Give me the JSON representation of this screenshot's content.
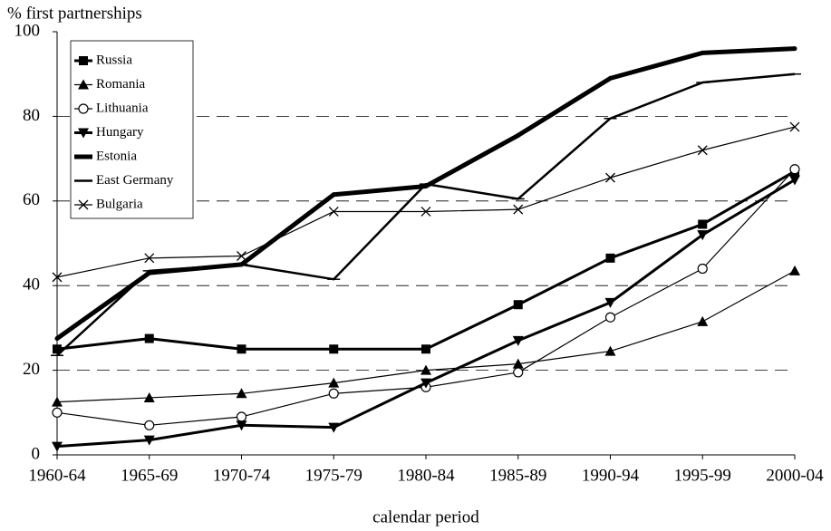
{
  "chart_data": {
    "type": "line",
    "y_axis_title": "% first partnerships",
    "x_axis_title": "calendar period",
    "categories": [
      "1960-64",
      "1965-69",
      "1970-74",
      "1975-79",
      "1980-84",
      "1985-89",
      "1990-94",
      "1995-99",
      "2000-04"
    ],
    "ylim": [
      0,
      100
    ],
    "yticks": [
      0,
      20,
      40,
      60,
      80,
      100
    ],
    "grid": true,
    "legend": "top-left",
    "series": [
      {
        "name": "Russia",
        "color": "#000000",
        "marker": "square",
        "width": 3,
        "values": [
          25,
          27.5,
          25,
          25,
          25,
          35.5,
          46.5,
          54.5,
          67
        ]
      },
      {
        "name": "Romania",
        "color": "#000000",
        "marker": "triangle",
        "width": 1.2,
        "values": [
          12.5,
          13.5,
          14.5,
          17,
          20,
          21.5,
          24.5,
          31.5,
          43.5
        ]
      },
      {
        "name": "Lithuania",
        "color": "#000000",
        "marker": "circle",
        "width": 1.2,
        "values": [
          10,
          7,
          9,
          14.5,
          16,
          19.5,
          32.5,
          44,
          67.5
        ]
      },
      {
        "name": "Hungary",
        "color": "#000000",
        "marker": "triangle-down",
        "width": 3,
        "values": [
          2,
          3.5,
          7,
          6.5,
          17,
          27,
          36,
          52,
          65
        ]
      },
      {
        "name": "Estonia",
        "color": "#000000",
        "marker": "none",
        "width": 5,
        "values": [
          27.5,
          43,
          45,
          61.5,
          63.5,
          75.5,
          89,
          95,
          96
        ]
      },
      {
        "name": "East Germany",
        "color": "#000000",
        "marker": "dash",
        "width": 2.5,
        "values": [
          23.5,
          43.5,
          45,
          41.5,
          64,
          60.5,
          79.5,
          88,
          90
        ]
      },
      {
        "name": "Bulgaria",
        "color": "#000000",
        "marker": "x",
        "width": 1.2,
        "values": [
          42,
          46.5,
          47,
          57.5,
          57.5,
          58,
          65.5,
          72,
          77.5
        ]
      }
    ]
  }
}
